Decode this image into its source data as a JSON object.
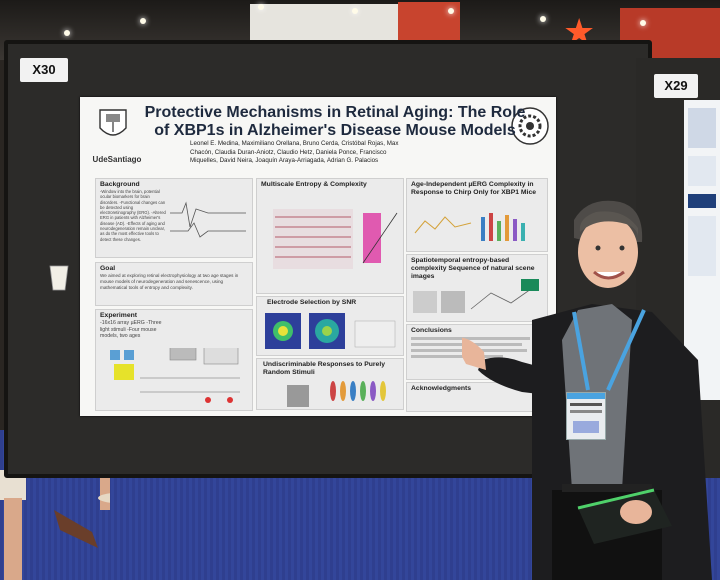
{
  "scene": {
    "description_tags": [
      "poster-session",
      "conference-hall"
    ],
    "colors": {
      "board": "#2c2b29",
      "poster_bg": "#f7f7f5",
      "title_color": "#1e2a3e",
      "carpet": "#33469a",
      "red_wall": "#c8442e",
      "star": "#ff5a2a"
    }
  },
  "board_labels": {
    "left": "X30",
    "right": "X29"
  },
  "poster": {
    "title_line1": "Protective Mechanisms in Retinal Aging: The Role",
    "title_line2": "of XBP1s in Alzheimer's Disease Mouse Models",
    "logo_text": "UdeSantiago",
    "authors": "Leonel E. Medina, Maximiliano Orellana, Bruno Cerda, Cristóbal Rojas, Max Chacón, Claudia Duran-Aniotz, Claudio Hetz, Daniela Ponce, Francisco Miquelles, David Neira, Joaquín Araya-Arriagada, Adrian G. Palacios",
    "sections": {
      "background": {
        "heading": "Background",
        "text": "-Window into the brain, potential ocular biomarkers for brain disorders. -Functional changes can be detected using electroretinography (ERG). -Altered ERG in patients with Alzheimer's disease (AD). -Effects of aging and neurodegeneration remain unclear, as do the most effective tools to detect these changes."
      },
      "goal": {
        "heading": "Goal",
        "text": "We aimed at exploring retinal electrophysiology at two age stages in mouse models of neurodegeneration and senescence, using mathematical tools of entropy and complexity."
      },
      "experiment": {
        "heading": "Experiment",
        "text": "-16x16 array µERG -Three light stimuli -Four mouse models, two ages"
      },
      "multiscale": {
        "heading": "Multiscale Entropy & Complexity"
      },
      "electrode": {
        "heading": "Electrode Selection by SNR"
      },
      "undiscriminable": {
        "heading": "Undiscriminable Responses to Purely Random Stimuli"
      },
      "age_independent": {
        "heading": "Age-Independent µERG Complexity in Response to Chirp Only for XBP1 Mice"
      },
      "spatiotemporal": {
        "heading": "Spatiotemporal entropy-based complexity Sequence of natural scene images"
      },
      "conclusions": {
        "heading": "Conclusions"
      },
      "acknowledgments": {
        "heading": "Acknowledgments"
      }
    }
  }
}
